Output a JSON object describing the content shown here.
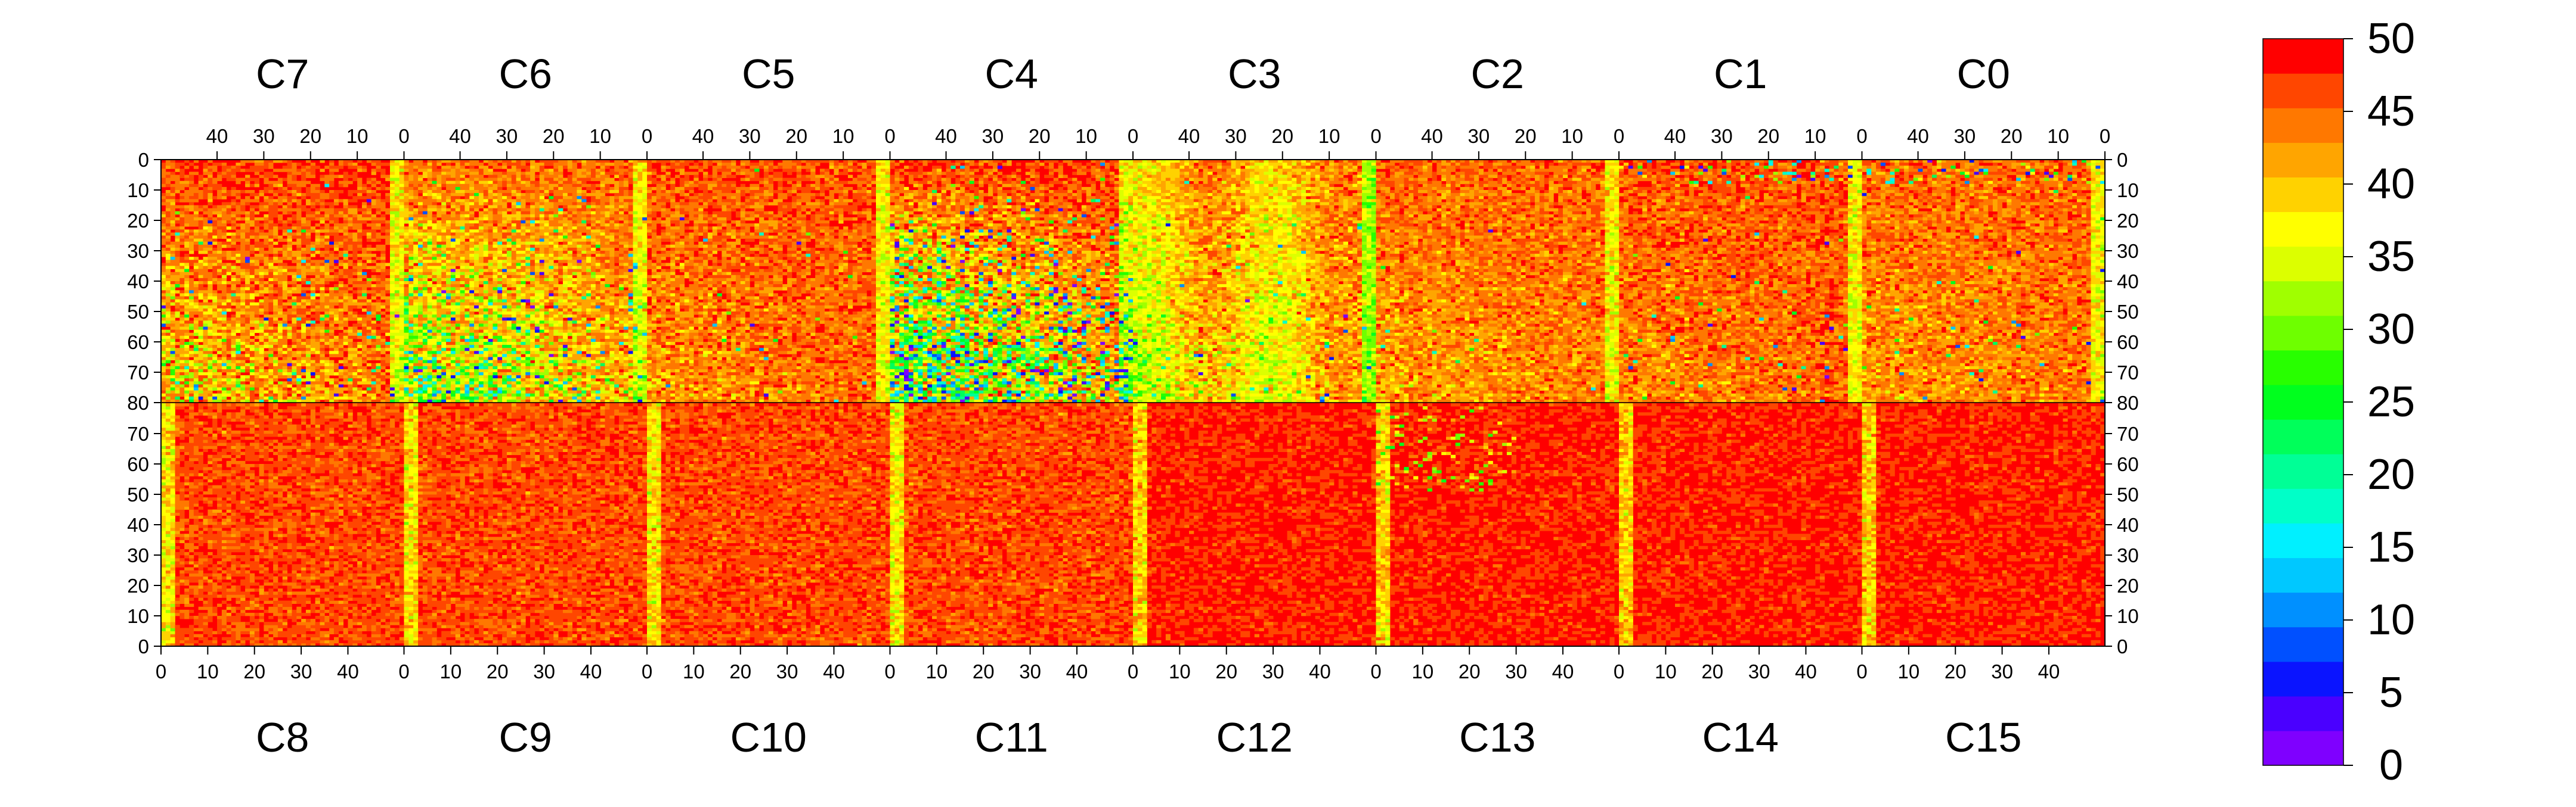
{
  "chart_data": {
    "type": "heatmap",
    "title": "",
    "top_chips": [
      "C7",
      "C6",
      "C5",
      "C4",
      "C3",
      "C2",
      "C1",
      "C0"
    ],
    "bottom_chips": [
      "C8",
      "C9",
      "C10",
      "C11",
      "C12",
      "C13",
      "C14",
      "C15"
    ],
    "column_ticks": [
      "0",
      "10",
      "20",
      "30",
      "40"
    ],
    "top_row_ticks": [
      "0",
      "10",
      "20",
      "30",
      "40",
      "50",
      "60",
      "70",
      "80"
    ],
    "bottom_row_ticks": [
      "0",
      "10",
      "20",
      "30",
      "40",
      "50",
      "60",
      "70",
      "80"
    ],
    "columns_per_chip": 52,
    "rows_per_half": 80,
    "x_range": [
      0,
      52
    ],
    "y_range": [
      0,
      80
    ],
    "colorbar": {
      "min": 0,
      "max": 50,
      "labels": [
        "0",
        "5",
        "10",
        "15",
        "20",
        "25",
        "30",
        "35",
        "40",
        "45",
        "50"
      ],
      "colors": [
        "#7f00ff",
        "#4a00ff",
        "#0a14ff",
        "#0050ff",
        "#0090ff",
        "#00c8ff",
        "#00f0ff",
        "#00ffc8",
        "#00ff96",
        "#00ff5a",
        "#00ff1e",
        "#28ff00",
        "#6eff00",
        "#a0ff00",
        "#dcff00",
        "#ffff00",
        "#ffd200",
        "#ffa500",
        "#ff7800",
        "#ff4600",
        "#ff0000"
      ]
    },
    "legend_position": "right",
    "grid": false
  }
}
